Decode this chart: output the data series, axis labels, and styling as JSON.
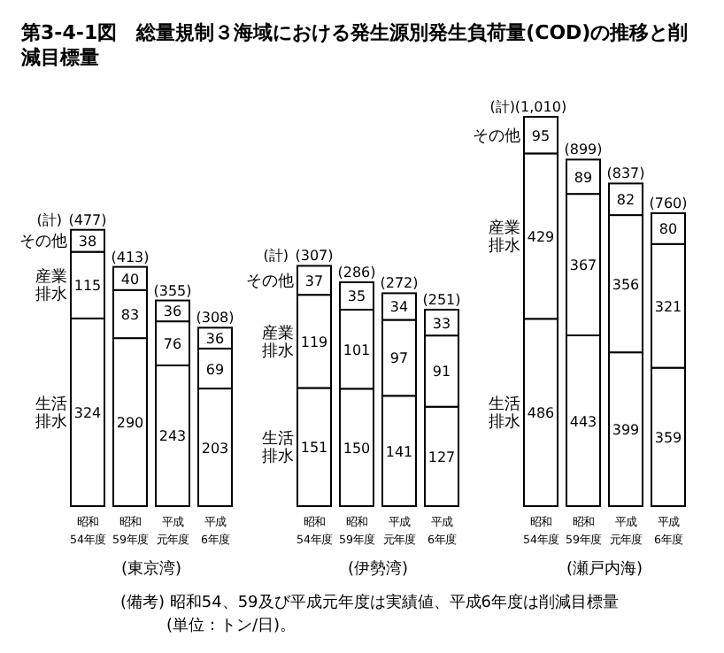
{
  "chart_data": [
    {
      "type": "bar",
      "title": "第3-4-1図　総量規制３海域における発生源別発生負荷量(COD)の推移と削減目標量",
      "xlabel": "(東京湾)",
      "categories": [
        "昭和54年度",
        "昭和59年度",
        "平成元年度",
        "平成6年度"
      ],
      "stacked": true,
      "data_labels": true,
      "totals": [
        "(477)",
        "(413)",
        "(355)",
        "(308)"
      ],
      "annotations": [
        "(計)"
      ],
      "series": [
        {
          "name": "生活排水",
          "color": "#ffffff",
          "values": [
            324,
            290,
            243,
            203
          ]
        },
        {
          "name": "産業排水",
          "color": "#ffffff",
          "values": [
            115,
            83,
            76,
            69
          ]
        },
        {
          "name": "その他",
          "color": "#ffffff",
          "values": [
            38,
            40,
            36,
            36
          ]
        }
      ]
    },
    {
      "type": "bar",
      "xlabel": "(伊勢湾)",
      "categories": [
        "昭和54年度",
        "昭和59年度",
        "平成元年度",
        "平成6年度"
      ],
      "stacked": true,
      "data_labels": true,
      "totals": [
        "(307)",
        "(286)",
        "(272)",
        "(251)"
      ],
      "annotations": [
        "(計)"
      ],
      "series": [
        {
          "name": "生活排水",
          "color": "#ffffff",
          "values": [
            151,
            150,
            141,
            127
          ]
        },
        {
          "name": "産業排水",
          "color": "#ffffff",
          "values": [
            119,
            101,
            97,
            91
          ]
        },
        {
          "name": "その他",
          "color": "#ffffff",
          "values": [
            37,
            35,
            34,
            33
          ]
        }
      ]
    },
    {
      "type": "bar",
      "xlabel": "(瀬戸内海)",
      "categories": [
        "昭和54年度",
        "昭和59年度",
        "平成元年度",
        "平成6年度"
      ],
      "stacked": true,
      "data_labels": true,
      "totals": [
        "(1,010)",
        "(899)",
        "(837)",
        "(760)"
      ],
      "annotations": [
        "(計)",
        "(備考) 昭和54、59及び平成元年度は実績値、平成6年度は削減目標量",
        "(単位：トン/日)。"
      ],
      "series": [
        {
          "name": "生活排水",
          "color": "#ffffff",
          "values": [
            486,
            443,
            399,
            359
          ]
        },
        {
          "name": "産業排水",
          "color": "#ffffff",
          "values": [
            429,
            367,
            356,
            321
          ]
        },
        {
          "name": "その他",
          "color": "#ffffff",
          "values": [
            95,
            89,
            82,
            80
          ]
        }
      ]
    }
  ]
}
